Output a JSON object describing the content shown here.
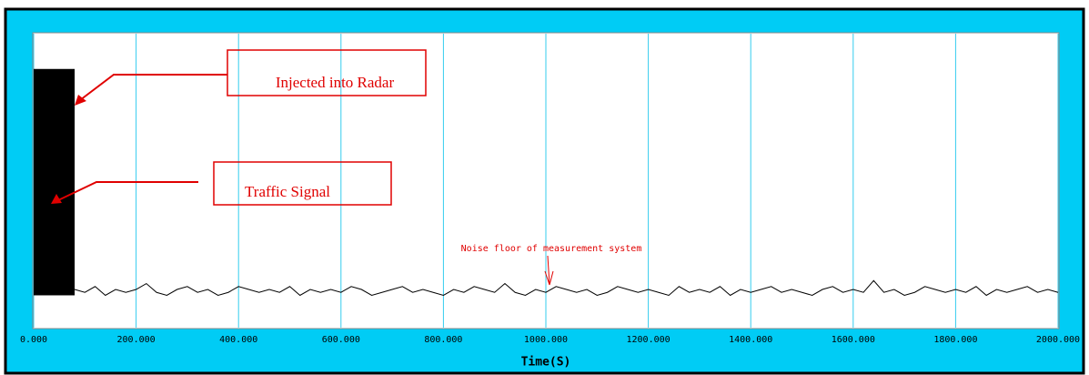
{
  "chart_data": {
    "type": "line",
    "x_label": "Time(S)",
    "xlim": [
      0,
      2000
    ],
    "ylim": [
      0,
      100
    ],
    "xticks": [
      {
        "value": 0,
        "label": "0.000"
      },
      {
        "value": 200,
        "label": "200.000"
      },
      {
        "value": 400,
        "label": "400.000"
      },
      {
        "value": 600,
        "label": "600.000"
      },
      {
        "value": 800,
        "label": "800.000"
      },
      {
        "value": 1000,
        "label": "1000.000"
      },
      {
        "value": 1200,
        "label": "1200.000"
      },
      {
        "value": 1400,
        "label": "1400.000"
      },
      {
        "value": 1600,
        "label": "1600.000"
      },
      {
        "value": 1800,
        "label": "1800.000"
      },
      {
        "value": 2000,
        "label": "2000.000"
      }
    ],
    "grid": true,
    "grid_color": "#33ccee",
    "burst": {
      "x": [
        0,
        80
      ],
      "values": [
        11,
        88
      ],
      "color": "#000000"
    },
    "series": [
      {
        "color": "#000000",
        "x": [
          80,
          100,
          120,
          140,
          160,
          180,
          200,
          220,
          240,
          260,
          280,
          300,
          320,
          340,
          360,
          380,
          400,
          420,
          440,
          460,
          480,
          500,
          520,
          540,
          560,
          580,
          600,
          620,
          640,
          660,
          680,
          700,
          720,
          740,
          760,
          780,
          800,
          820,
          840,
          860,
          880,
          900,
          920,
          940,
          960,
          980,
          1000,
          1020,
          1040,
          1060,
          1080,
          1100,
          1120,
          1140,
          1160,
          1180,
          1200,
          1220,
          1240,
          1260,
          1280,
          1300,
          1320,
          1340,
          1360,
          1380,
          1400,
          1420,
          1440,
          1460,
          1480,
          1500,
          1520,
          1540,
          1560,
          1580,
          1600,
          1620,
          1640,
          1660,
          1680,
          1700,
          1720,
          1740,
          1760,
          1780,
          1800,
          1820,
          1840,
          1860,
          1880,
          1900,
          1920,
          1940,
          1960,
          1980,
          2000
        ],
        "values": [
          13,
          12,
          14,
          11,
          13,
          12,
          13,
          15,
          12,
          11,
          13,
          14,
          12,
          13,
          11,
          12,
          14,
          13,
          12,
          13,
          12,
          14,
          11,
          13,
          12,
          13,
          12,
          14,
          13,
          11,
          12,
          13,
          14,
          12,
          13,
          12,
          11,
          13,
          12,
          14,
          13,
          12,
          15,
          12,
          11,
          13,
          12,
          14,
          13,
          12,
          13,
          11,
          12,
          14,
          13,
          12,
          13,
          12,
          11,
          14,
          12,
          13,
          12,
          14,
          11,
          13,
          12,
          13,
          14,
          12,
          13,
          12,
          11,
          13,
          14,
          12,
          13,
          12,
          16,
          12,
          13,
          11,
          12,
          14,
          13,
          12,
          13,
          12,
          14,
          11,
          13,
          12,
          13,
          14,
          12,
          13,
          12
        ]
      }
    ],
    "annotations": [
      "Injected into Radar",
      "Traffic Signal",
      "Noise floor of measurement system"
    ]
  }
}
